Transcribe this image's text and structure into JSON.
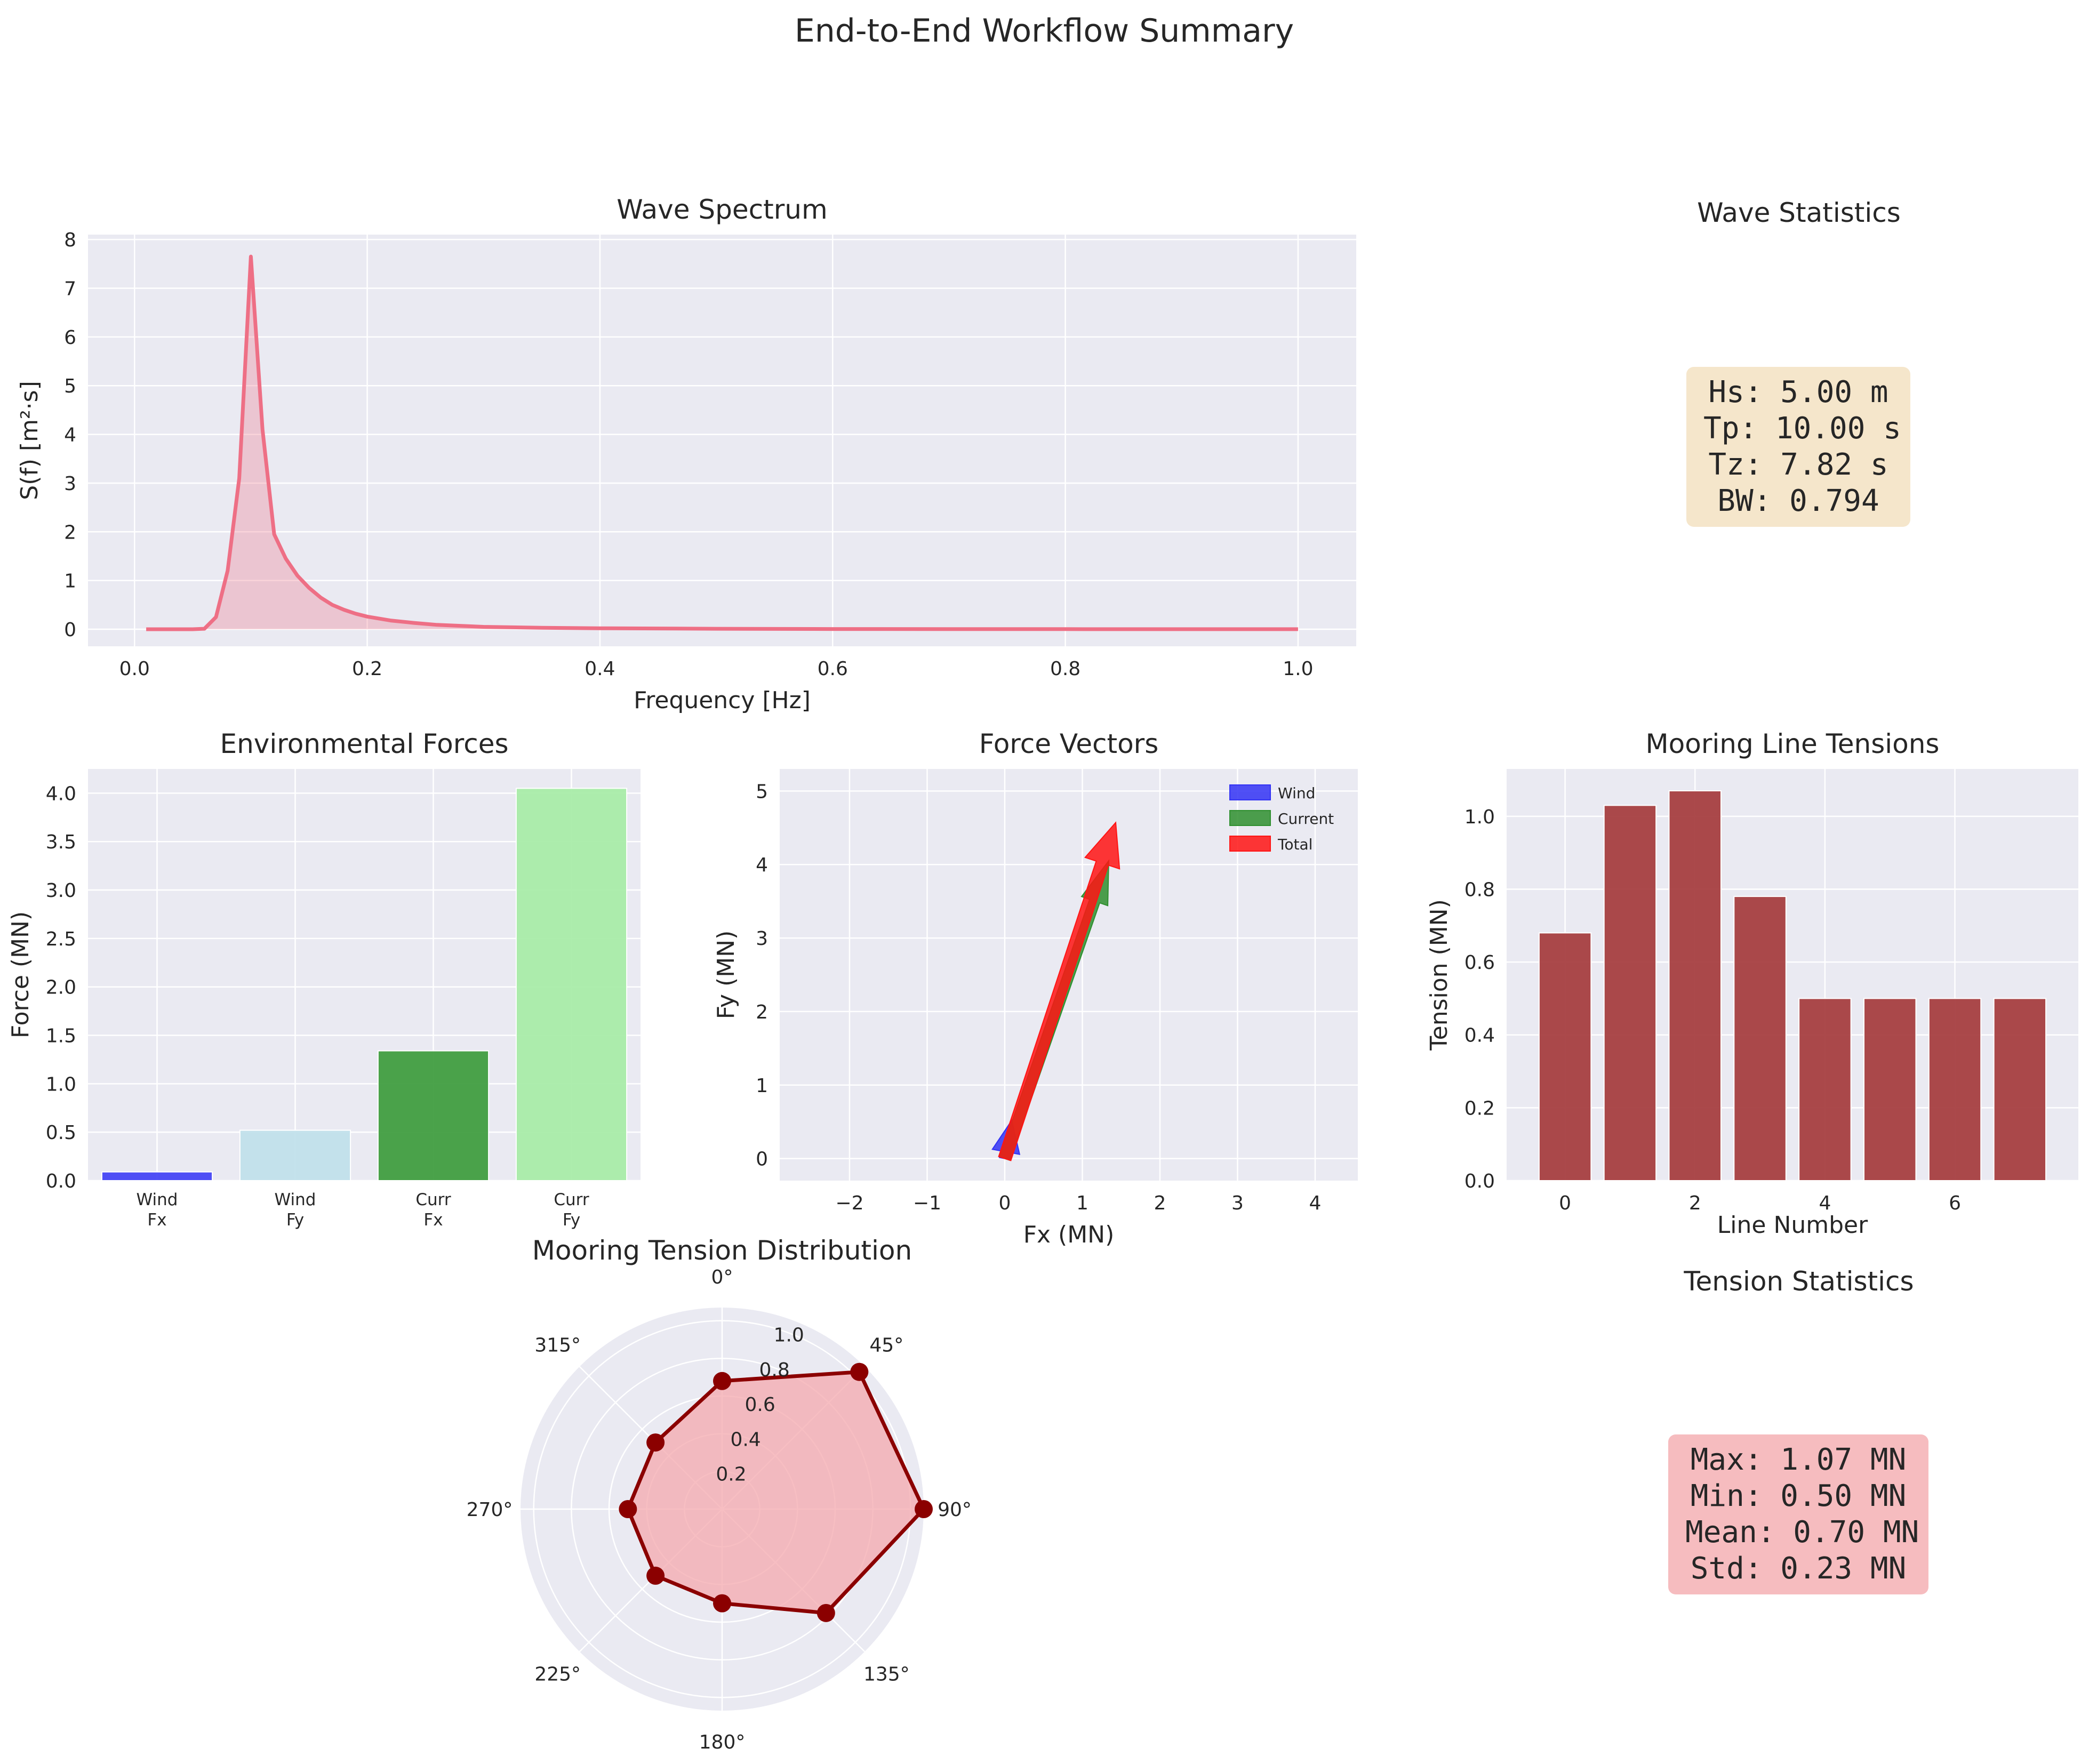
{
  "figure": {
    "title": "End-to-End Workflow Summary"
  },
  "colors": {
    "axes_bg": "#eaeaf2",
    "grid": "#ffffff",
    "spectrum": "#ee6f85",
    "mooring_bar": "#a4393c",
    "polar_line": "#8b0000",
    "polar_fill": "#f4a8ad"
  },
  "chart_data": [
    {
      "id": "wave_spectrum",
      "type": "area",
      "title": "Wave Spectrum",
      "xlabel": "Frequency [Hz]",
      "ylabel": "S(f) [m²·s]",
      "xlim": [
        -0.04,
        1.05
      ],
      "ylim": [
        -0.35,
        8.1
      ],
      "xticks": [
        "0.0",
        "0.2",
        "0.4",
        "0.6",
        "0.8",
        "1.0"
      ],
      "yticks": [
        "0",
        "1",
        "2",
        "3",
        "4",
        "5",
        "6",
        "7",
        "8"
      ],
      "x": [
        0.01,
        0.02,
        0.03,
        0.04,
        0.05,
        0.06,
        0.07,
        0.08,
        0.09,
        0.1,
        0.11,
        0.12,
        0.13,
        0.14,
        0.15,
        0.16,
        0.17,
        0.18,
        0.19,
        0.2,
        0.22,
        0.24,
        0.26,
        0.28,
        0.3,
        0.35,
        0.4,
        0.5,
        0.6,
        0.7,
        0.8,
        0.9,
        1.0
      ],
      "y": [
        0,
        0,
        0,
        0,
        0,
        0.01,
        0.25,
        1.2,
        3.1,
        7.65,
        4.1,
        1.95,
        1.45,
        1.1,
        0.85,
        0.65,
        0.5,
        0.4,
        0.32,
        0.26,
        0.18,
        0.13,
        0.09,
        0.07,
        0.05,
        0.03,
        0.02,
        0.01,
        0.005,
        0.003,
        0.002,
        0.001,
        0.001
      ]
    },
    {
      "id": "environmental_forces",
      "type": "bar",
      "title": "Environmental Forces",
      "ylabel": "Force (MN)",
      "ylim": [
        0,
        4.25
      ],
      "yticks": [
        "0.0",
        "0.5",
        "1.0",
        "1.5",
        "2.0",
        "2.5",
        "3.0",
        "3.5",
        "4.0"
      ],
      "categories": [
        [
          "Wind",
          "Fx"
        ],
        [
          "Wind",
          "Fy"
        ],
        [
          "Curr",
          "Fx"
        ],
        [
          "Curr",
          "Fy"
        ]
      ],
      "values": [
        0.09,
        0.52,
        1.34,
        4.05
      ],
      "bar_colors": [
        "#4040f5",
        "#bfe0ea",
        "#3c9b3c",
        "#a6eca6"
      ]
    },
    {
      "id": "force_vectors",
      "type": "scatter",
      "title": "Force Vectors",
      "xlabel": "Fx (MN)",
      "ylabel": "Fy (MN)",
      "xlim": [
        -2.9,
        4.55
      ],
      "ylim": [
        -0.3,
        5.3
      ],
      "xticks": [
        "−2",
        "−1",
        "0",
        "1",
        "2",
        "3",
        "4"
      ],
      "yticks": [
        "0",
        "1",
        "2",
        "3",
        "4",
        "5"
      ],
      "series": [
        {
          "name": "Wind",
          "dx": 0.09,
          "dy": 0.52,
          "color": "#3232f5"
        },
        {
          "name": "Current",
          "dx": 1.34,
          "dy": 4.05,
          "color": "#2f8f2f"
        },
        {
          "name": "Total",
          "dx": 1.43,
          "dy": 4.57,
          "color": "#ff1414"
        }
      ]
    },
    {
      "id": "mooring_line_tensions",
      "type": "bar",
      "title": "Mooring Line Tensions",
      "xlabel": "Line Number",
      "ylabel": "Tension (MN)",
      "xlim": [
        -0.9,
        7.9
      ],
      "ylim": [
        0,
        1.13
      ],
      "xticks": [
        "0",
        "2",
        "4",
        "6"
      ],
      "yticks": [
        "0.0",
        "0.2",
        "0.4",
        "0.6",
        "0.8",
        "1.0"
      ],
      "categories": [
        0,
        1,
        2,
        3,
        4,
        5,
        6,
        7
      ],
      "values": [
        0.68,
        1.03,
        1.07,
        0.78,
        0.5,
        0.5,
        0.5,
        0.5
      ]
    },
    {
      "id": "mooring_tension_distribution",
      "type": "line",
      "title": "Mooring Tension Distribution",
      "angles": [
        0,
        45,
        90,
        135,
        180,
        225,
        270,
        315
      ],
      "angle_labels": [
        "0°",
        "45°",
        "90°",
        "135°",
        "180°",
        "225°",
        "270°",
        "315°"
      ],
      "rlim": [
        0,
        1.07
      ],
      "rticks": [
        "0.2",
        "0.4",
        "0.6",
        "0.8",
        "1.0"
      ],
      "values": [
        0.68,
        1.03,
        1.07,
        0.78,
        0.5,
        0.5,
        0.5,
        0.5
      ]
    }
  ],
  "wave_stats": {
    "title": "Wave Statistics",
    "lines": [
      "Hs: 5.00 m",
      "Tp: 10.00 s",
      "Tz: 7.82 s",
      "BW: 0.794"
    ]
  },
  "tension_stats": {
    "title": "Tension Statistics",
    "lines": [
      "Max: 1.07 MN",
      "Min: 0.50 MN",
      "Mean: 0.70 MN",
      "Std: 0.23 MN"
    ]
  }
}
